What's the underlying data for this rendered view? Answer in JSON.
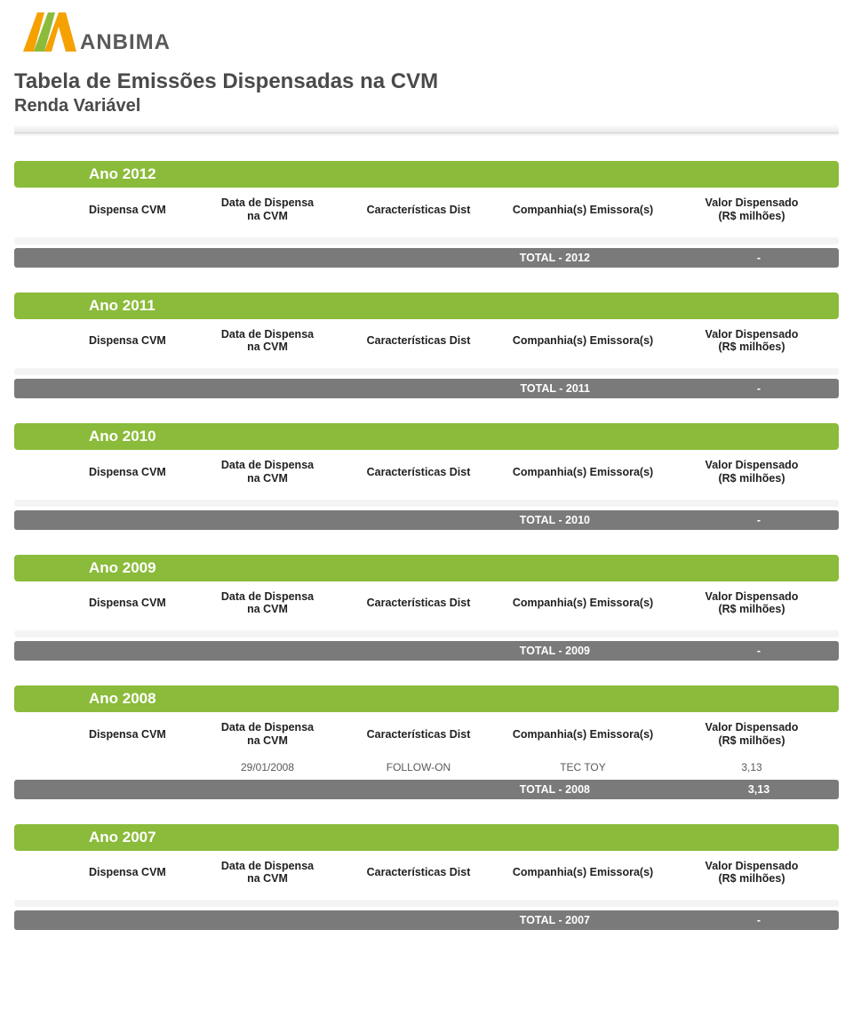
{
  "brand": {
    "name": "ANBIMA"
  },
  "colors": {
    "accent": "#8bbb3a",
    "accent_dark": "#7aa831",
    "total_bar": "#7a7a7a",
    "light_row": "#f4f4f4",
    "title_text": "#4a4a4a"
  },
  "page": {
    "title": "Tabela de Emissões Dispensadas na CVM",
    "subtitle": "Renda Variável"
  },
  "columns": {
    "c1": "Dispensa CVM",
    "c2_l1": "Data de Dispensa",
    "c2_l2": "na CVM",
    "c3": "Características Dist",
    "c4": "Companhia(s) Emissora(s)",
    "c5_l1": "Valor Dispensado",
    "c5_l2": "(R$ milhões)"
  },
  "sections": [
    {
      "year_label": "Ano 2012",
      "total_label": "TOTAL - 2012",
      "total_value": "-",
      "rows": []
    },
    {
      "year_label": "Ano 2011",
      "total_label": "TOTAL - 2011",
      "total_value": "-",
      "rows": []
    },
    {
      "year_label": "Ano 2010",
      "total_label": "TOTAL - 2010",
      "total_value": "-",
      "rows": []
    },
    {
      "year_label": "Ano 2009",
      "total_label": "TOTAL - 2009",
      "total_value": "-",
      "rows": []
    },
    {
      "year_label": "Ano 2008",
      "total_label": "TOTAL - 2008",
      "total_value": "3,13",
      "rows": [
        {
          "c1": "",
          "c2": "29/01/2008",
          "c3": "FOLLOW-ON",
          "c4": "TEC TOY",
          "c5": "3,13"
        }
      ]
    },
    {
      "year_label": "Ano 2007",
      "total_label": "TOTAL - 2007",
      "total_value": "-",
      "rows": []
    }
  ]
}
